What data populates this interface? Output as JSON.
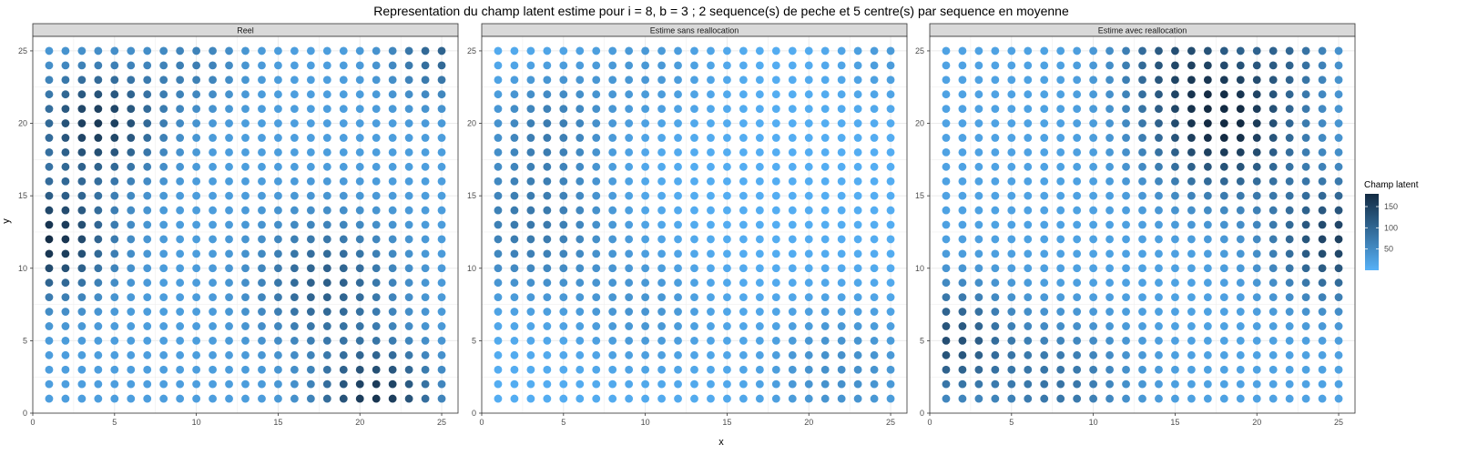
{
  "title": "Representation du champ latent estime pour i = 8, b = 3 ; 2 sequence(s) de peche et 5 centre(s) par sequence en moyenne",
  "colors": {
    "low": "#56B1F7",
    "high": "#132B43",
    "strip_bg": "#D9D9D9",
    "grid": "#EBEBEB",
    "border": "#333333"
  },
  "chart_data": {
    "type": "scatter",
    "xlabel": "x",
    "ylabel": "y",
    "xlim": [
      0,
      26
    ],
    "ylim": [
      0,
      26
    ],
    "xticks": [
      "0",
      "5",
      "10",
      "15",
      "20",
      "25"
    ],
    "yticks": [
      "0",
      "5",
      "10",
      "15",
      "20",
      "25"
    ],
    "grid": true,
    "grid_values": {
      "x": [
        1,
        25
      ],
      "y": [
        1,
        25
      ]
    },
    "legend": {
      "title": "Champ latent",
      "position": "right",
      "ticks": [
        "50",
        "100",
        "150"
      ],
      "range": [
        0,
        180
      ]
    },
    "panels": [
      {
        "name": "Reel",
        "description": "higher values top-left (4,20) and (1,12), cluster bottom-right near (21,1)",
        "sample_points": [
          [
            1,
            12,
            175
          ],
          [
            4,
            20,
            160
          ],
          [
            21,
            1,
            165
          ],
          [
            25,
            25,
            95
          ],
          [
            13,
            13,
            30
          ],
          [
            10,
            5,
            25
          ],
          [
            18,
            9,
            110
          ]
        ]
      },
      {
        "name": "Estime sans reallocation",
        "description": "mostly low values, lighter band on the right side",
        "sample_points": [
          [
            1,
            12,
            80
          ],
          [
            4,
            14,
            75
          ],
          [
            13,
            13,
            10
          ],
          [
            19,
            19,
            2
          ],
          [
            25,
            1,
            30
          ],
          [
            22,
            3,
            50
          ]
        ]
      },
      {
        "name": "Estime avec reallocation",
        "description": "hotspot near (18,20), right edge band, left column cluster",
        "sample_points": [
          [
            18,
            20,
            180
          ],
          [
            16,
            19,
            160
          ],
          [
            25,
            11,
            150
          ],
          [
            25,
            14,
            145
          ],
          [
            1,
            5,
            120
          ],
          [
            11,
            13,
            20
          ],
          [
            6,
            17,
            25
          ]
        ]
      }
    ]
  }
}
